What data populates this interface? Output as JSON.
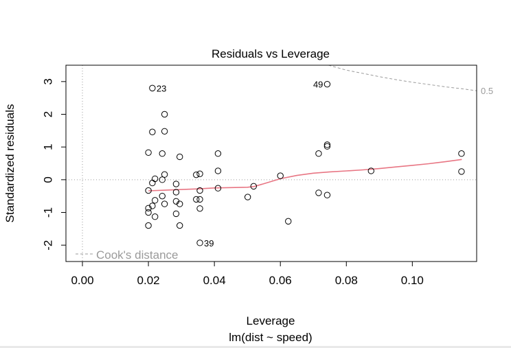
{
  "chart_data": {
    "type": "scatter",
    "title": "Residuals vs Leverage",
    "xlabel": "Leverage",
    "subtitle": "lm(dist ~ speed)",
    "ylabel": "Standardized residuals",
    "xlim": [
      -0.005,
      0.1195
    ],
    "ylim": [
      -2.5,
      3.5
    ],
    "x_ticks": [
      0.0,
      0.02,
      0.04,
      0.06,
      0.08,
      0.1
    ],
    "x_tick_labels": [
      "0.00",
      "0.02",
      "0.04",
      "0.06",
      "0.08",
      "0.10"
    ],
    "y_ticks": [
      -2,
      -1,
      0,
      1,
      2,
      3
    ],
    "y_tick_labels": [
      "-2",
      "-1",
      "0",
      "1",
      "2",
      "3"
    ],
    "reference_lines": [
      {
        "orientation": "horizontal",
        "value": 0,
        "style": "dotted",
        "color": "#9a9a9a"
      },
      {
        "orientation": "vertical",
        "value": 0,
        "style": "dotted",
        "color": "#9a9a9a"
      }
    ],
    "points": [
      {
        "x": 0.02,
        "y": 0.83
      },
      {
        "x": 0.02,
        "y": -0.33
      },
      {
        "x": 0.02,
        "y": -0.87
      },
      {
        "x": 0.02,
        "y": -1.0
      },
      {
        "x": 0.02,
        "y": -1.4
      },
      {
        "x": 0.0212,
        "y": 2.8
      },
      {
        "x": 0.0212,
        "y": 1.46
      },
      {
        "x": 0.0212,
        "y": -0.1
      },
      {
        "x": 0.0212,
        "y": -0.8
      },
      {
        "x": 0.022,
        "y": 0.03
      },
      {
        "x": 0.022,
        "y": -0.63
      },
      {
        "x": 0.022,
        "y": -1.13
      },
      {
        "x": 0.0242,
        "y": 0.8
      },
      {
        "x": 0.0242,
        "y": 0.0
      },
      {
        "x": 0.0242,
        "y": -0.5
      },
      {
        "x": 0.0249,
        "y": 2.0
      },
      {
        "x": 0.0249,
        "y": 1.48
      },
      {
        "x": 0.0249,
        "y": 0.16
      },
      {
        "x": 0.0249,
        "y": -0.74
      },
      {
        "x": 0.0284,
        "y": -0.13
      },
      {
        "x": 0.0284,
        "y": -0.38
      },
      {
        "x": 0.0284,
        "y": -0.66
      },
      {
        "x": 0.0284,
        "y": -1.04
      },
      {
        "x": 0.0295,
        "y": 0.7
      },
      {
        "x": 0.0295,
        "y": -0.74
      },
      {
        "x": 0.0295,
        "y": -1.4
      },
      {
        "x": 0.0345,
        "y": 0.15
      },
      {
        "x": 0.0345,
        "y": -0.6
      },
      {
        "x": 0.0356,
        "y": 0.18
      },
      {
        "x": 0.0356,
        "y": -0.33
      },
      {
        "x": 0.0356,
        "y": -0.6
      },
      {
        "x": 0.0356,
        "y": -0.88
      },
      {
        "x": 0.0356,
        "y": -1.93
      },
      {
        "x": 0.0411,
        "y": 0.8
      },
      {
        "x": 0.0411,
        "y": 0.27
      },
      {
        "x": 0.0411,
        "y": -0.26
      },
      {
        "x": 0.0501,
        "y": -0.53
      },
      {
        "x": 0.0519,
        "y": -0.2
      },
      {
        "x": 0.06,
        "y": 0.12
      },
      {
        "x": 0.0624,
        "y": -1.27
      },
      {
        "x": 0.0716,
        "y": 0.8
      },
      {
        "x": 0.0716,
        "y": -0.4
      },
      {
        "x": 0.0742,
        "y": 2.92
      },
      {
        "x": 0.0742,
        "y": 1.07
      },
      {
        "x": 0.0742,
        "y": 1.02
      },
      {
        "x": 0.0742,
        "y": -0.47
      },
      {
        "x": 0.0875,
        "y": 0.27
      },
      {
        "x": 0.1149,
        "y": 0.8
      },
      {
        "x": 0.1149,
        "y": 0.25
      }
    ],
    "point_labels": [
      {
        "x": 0.0212,
        "y": 2.8,
        "text": "23",
        "side": "right"
      },
      {
        "x": 0.0742,
        "y": 2.92,
        "text": "49",
        "side": "left"
      },
      {
        "x": 0.0356,
        "y": -1.93,
        "text": "39",
        "side": "right"
      }
    ],
    "smoother": {
      "color": "#e87583",
      "x": [
        0.02,
        0.025,
        0.03,
        0.035,
        0.04,
        0.045,
        0.05,
        0.052,
        0.055,
        0.06,
        0.065,
        0.07,
        0.075,
        0.08,
        0.085,
        0.09,
        0.095,
        0.1,
        0.105,
        0.11,
        0.115
      ],
      "y": [
        -0.34,
        -0.32,
        -0.3,
        -0.28,
        -0.25,
        -0.24,
        -0.23,
        -0.21,
        -0.12,
        0.03,
        0.13,
        0.2,
        0.24,
        0.27,
        0.3,
        0.34,
        0.39,
        0.44,
        0.49,
        0.55,
        0.62
      ]
    },
    "cooks_curve": {
      "level_label": "0.5",
      "color": "#9a9a9a",
      "x": [
        0.0746,
        0.08,
        0.085,
        0.09,
        0.095,
        0.1,
        0.105,
        0.11,
        0.115,
        0.1195
      ],
      "y": [
        3.5,
        3.35,
        3.25,
        3.15,
        3.06,
        2.98,
        2.91,
        2.84,
        2.78,
        2.72
      ]
    },
    "legend": {
      "text": "Cook's distance",
      "position": "bottom-left",
      "line_style": "dashed"
    }
  }
}
